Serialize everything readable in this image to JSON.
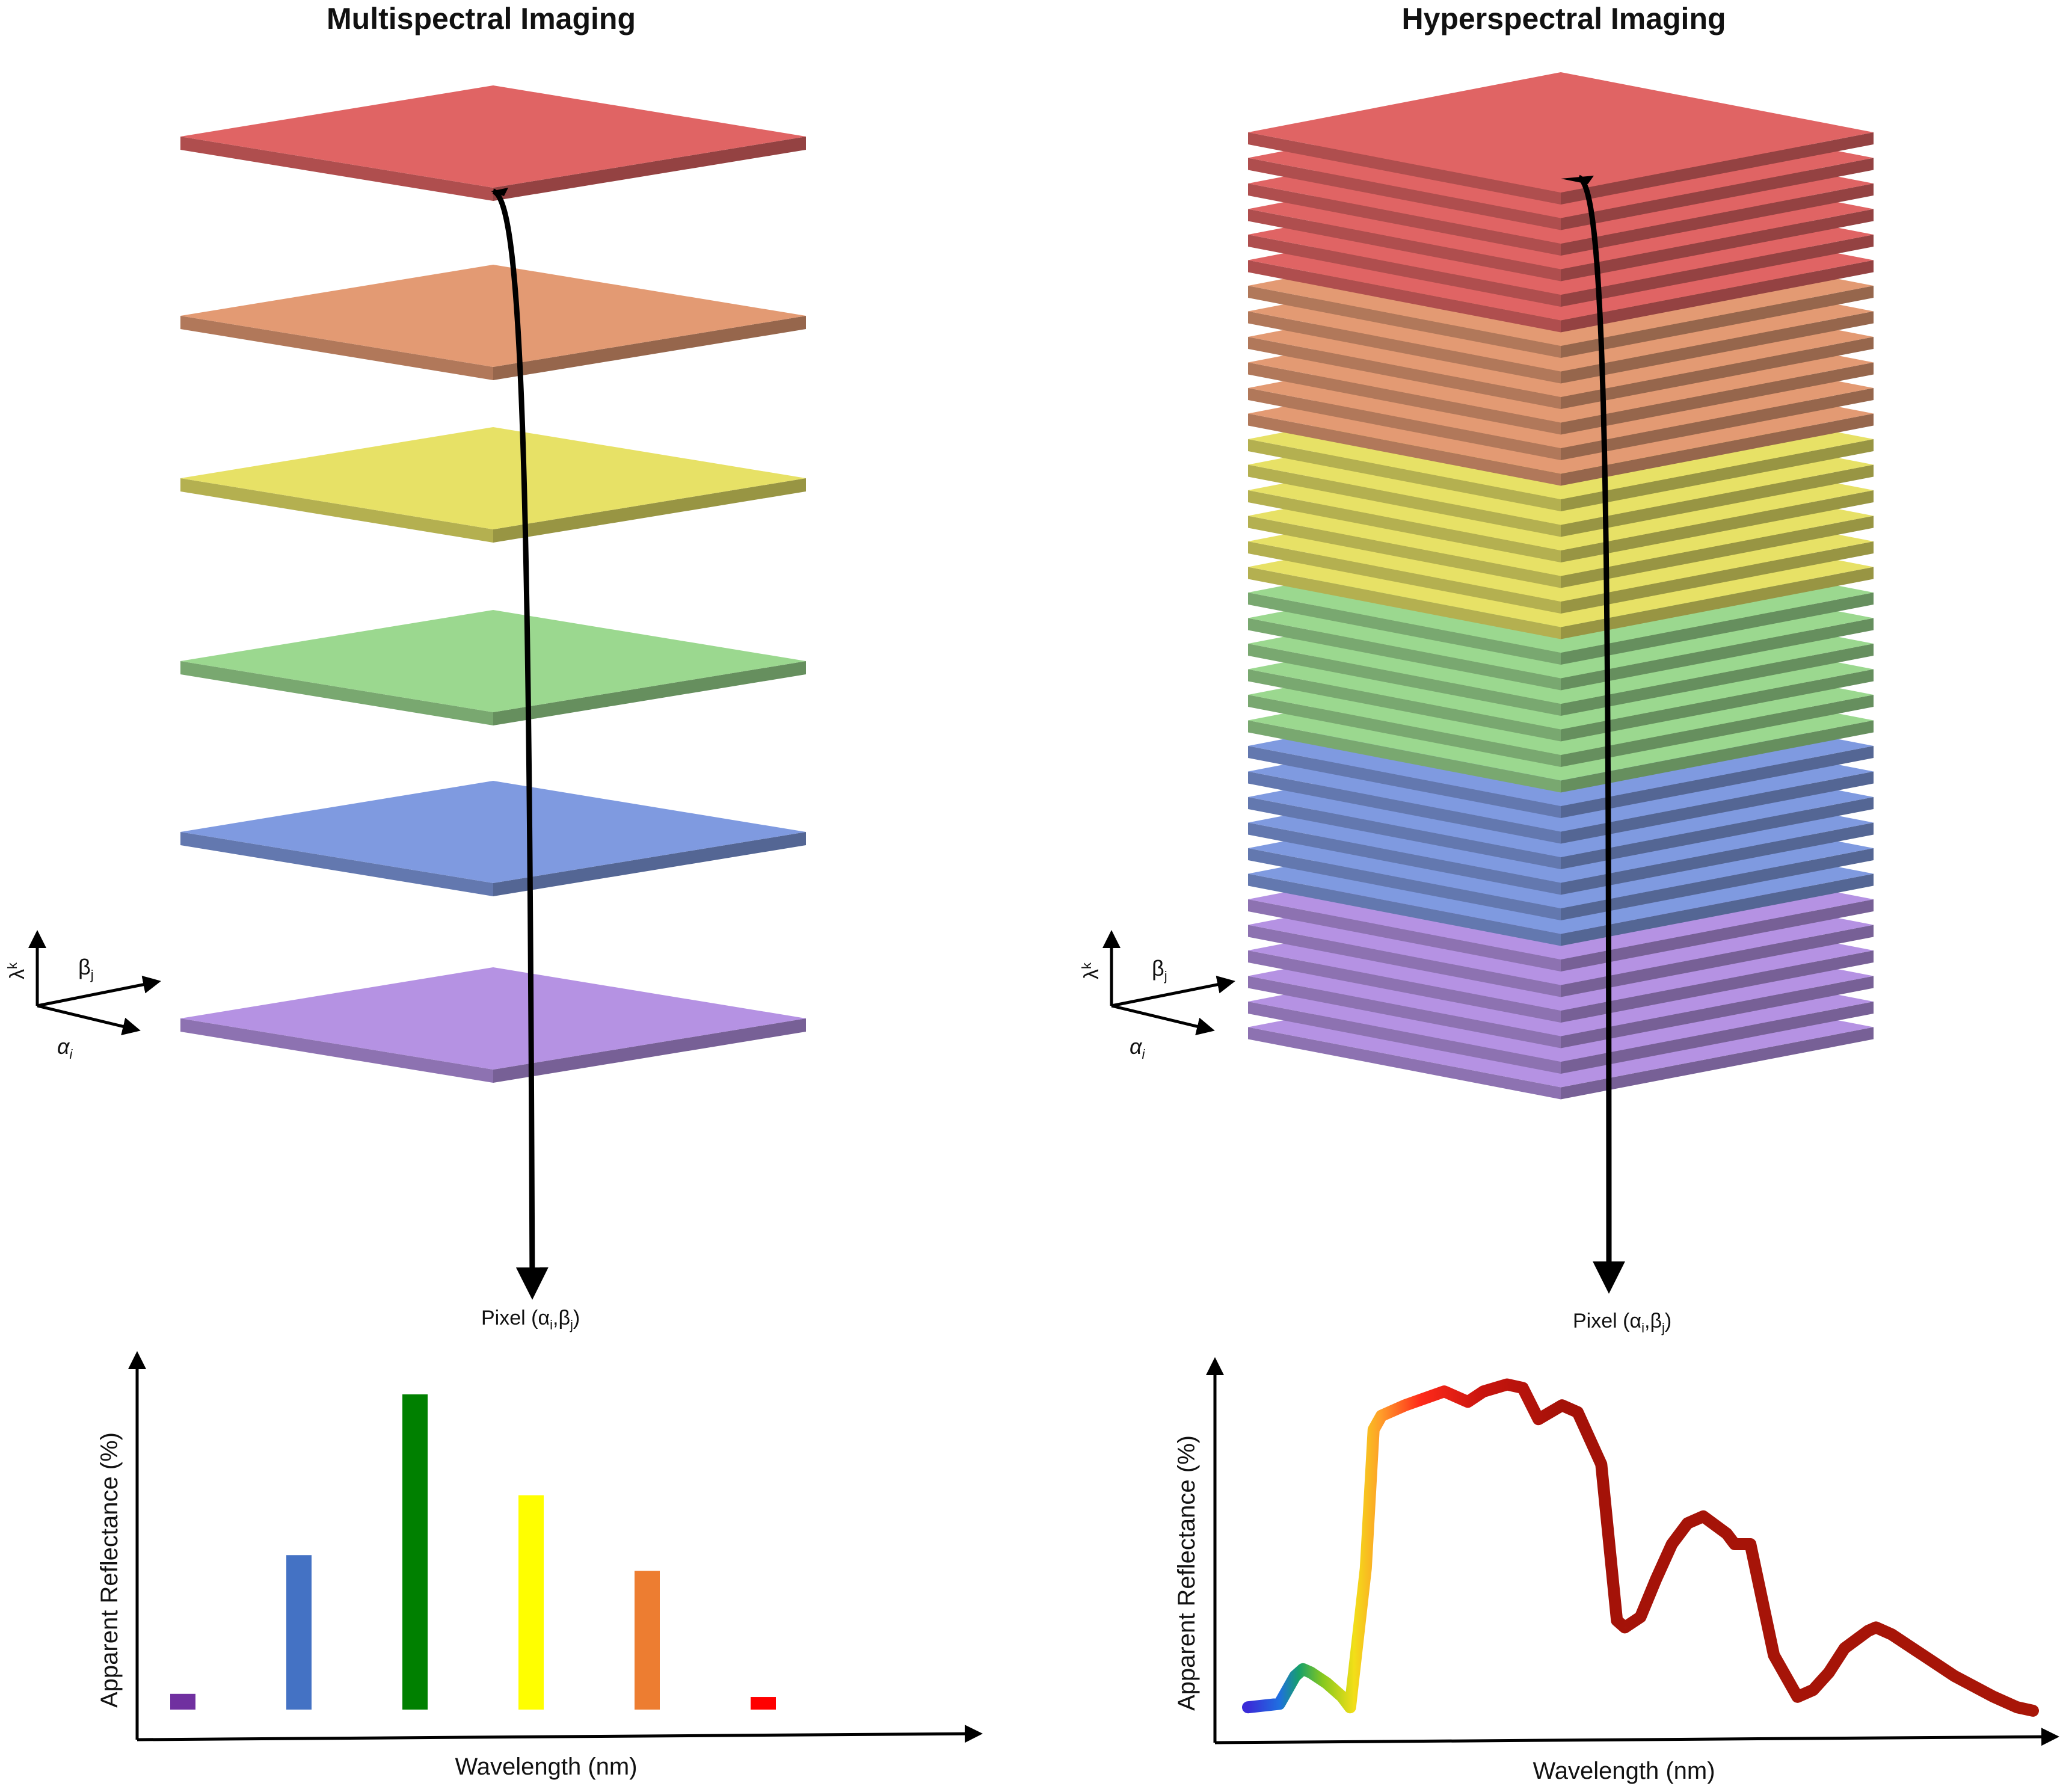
{
  "titles": {
    "left": "Multispectral Imaging",
    "right": "Hyperspectral Imaging"
  },
  "axes_icon": {
    "lambda": "λ",
    "lambda_sup": "k",
    "beta": "β",
    "beta_sub": "j",
    "alpha": "α",
    "alpha_sub": "i"
  },
  "pixel_label": {
    "prefix": "Pixel (",
    "alpha": "α",
    "alpha_sub": "i",
    "sep": ",",
    "beta": "β",
    "beta_sub": "j",
    "suffix": ")"
  },
  "band_colors": {
    "red": "#e06464",
    "orange": "#e39a73",
    "yellow": "#e7e166",
    "green": "#9bd88f",
    "blue": "#7f9ae0",
    "violet": "#b592e3"
  },
  "chart_data": [
    {
      "type": "bar",
      "title": "Multispectral Imaging",
      "xlabel": "Wavelength (nm)",
      "ylabel": "Apparent Reflectance (%)",
      "ylim": [
        0,
        100
      ],
      "categories": [
        "violet",
        "blue",
        "green",
        "yellow",
        "orange",
        "red"
      ],
      "values": [
        5,
        49,
        100,
        68,
        44,
        4
      ],
      "colors": [
        "#7030a0",
        "#4472c4",
        "#008000",
        "#ffff00",
        "#ed7d31",
        "#ff0000"
      ]
    },
    {
      "type": "line",
      "title": "Hyperspectral Imaging",
      "xlabel": "Wavelength (nm)",
      "ylabel": "Apparent Reflectance (%)",
      "xlim": [
        0,
        100
      ],
      "ylim": [
        0,
        100
      ],
      "x": [
        0,
        4,
        6,
        7,
        8,
        10,
        12,
        13,
        15,
        16,
        17,
        20,
        25,
        28,
        30,
        33,
        35,
        37,
        40,
        42,
        45,
        47,
        48,
        50,
        52,
        54,
        56,
        58,
        61,
        62,
        64,
        67,
        70,
        72,
        74,
        76,
        79,
        80,
        82,
        86,
        90,
        95,
        98,
        100
      ],
      "y": [
        5,
        6,
        14,
        16,
        15,
        12,
        8,
        5,
        45,
        85,
        89,
        92,
        96,
        93,
        96,
        98,
        97,
        88,
        92,
        90,
        75,
        30,
        28,
        31,
        42,
        52,
        58,
        60,
        55,
        52,
        52,
        20,
        8,
        10,
        15,
        22,
        27,
        28,
        26,
        20,
        14,
        8,
        5,
        4
      ]
    }
  ]
}
